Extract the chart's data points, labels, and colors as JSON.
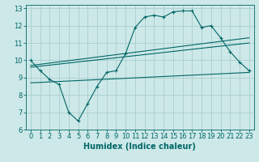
{
  "xlabel": "Humidex (Indice chaleur)",
  "xlim": [
    -0.5,
    23.5
  ],
  "ylim": [
    6,
    13.2
  ],
  "xticks": [
    0,
    1,
    2,
    3,
    4,
    5,
    6,
    7,
    8,
    9,
    10,
    11,
    12,
    13,
    14,
    15,
    16,
    17,
    18,
    19,
    20,
    21,
    22,
    23
  ],
  "yticks": [
    6,
    7,
    8,
    9,
    10,
    11,
    12,
    13
  ],
  "background_color": "#cde8e8",
  "grid_color": "#a8cece",
  "line_color": "#006666",
  "lines": [
    {
      "x": [
        0,
        1,
        2,
        3,
        4,
        5,
        6,
        7,
        8,
        9,
        10,
        11,
        12,
        13,
        14,
        15,
        16,
        17,
        18,
        19,
        20,
        21,
        22,
        23
      ],
      "y": [
        10.0,
        9.4,
        8.9,
        8.6,
        7.0,
        6.5,
        7.5,
        8.5,
        9.3,
        9.4,
        10.4,
        11.9,
        12.5,
        12.6,
        12.5,
        12.8,
        12.85,
        12.85,
        11.9,
        12.0,
        11.3,
        10.5,
        9.9,
        9.4
      ],
      "marker": true
    },
    {
      "x": [
        0,
        23
      ],
      "y": [
        9.7,
        11.3
      ],
      "marker": false
    },
    {
      "x": [
        0,
        23
      ],
      "y": [
        9.6,
        11.0
      ],
      "marker": false
    },
    {
      "x": [
        0,
        23
      ],
      "y": [
        8.7,
        9.3
      ],
      "marker": false
    }
  ],
  "font_size_xlabel": 7,
  "tick_font_size": 6
}
